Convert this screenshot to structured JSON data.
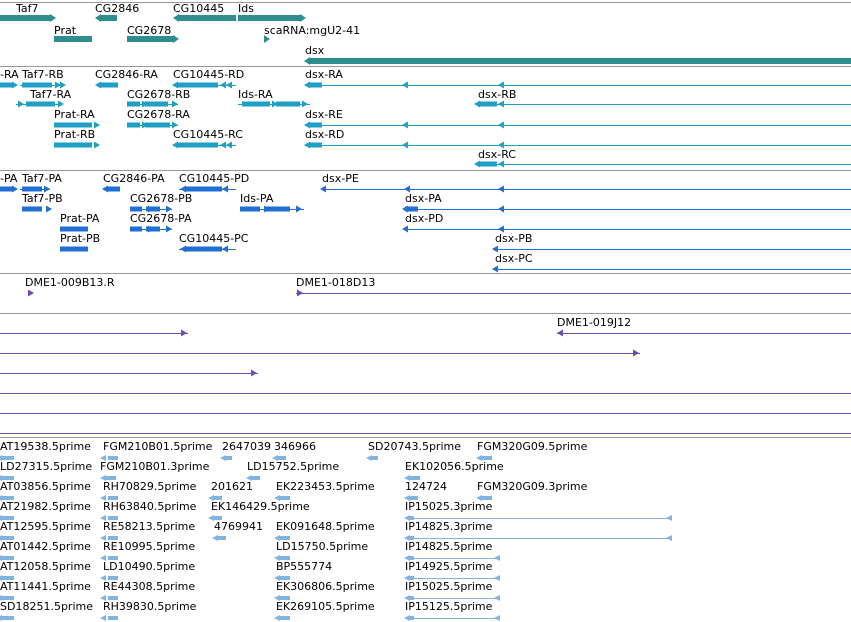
{
  "colors": {
    "gene": "#2f8f8f",
    "transcript": "#1ea0c6",
    "cds": "#1f6fd4",
    "clone": "#6a4fb0",
    "est": "#7fb5e0",
    "separator": "#999999"
  },
  "tracks": {
    "genes": {
      "items": [
        {
          "label": "Taf7",
          "strand": "+"
        },
        {
          "label": "Prat",
          "strand": "+"
        },
        {
          "label": "CG2846",
          "strand": "-"
        },
        {
          "label": "CG2678",
          "strand": "+"
        },
        {
          "label": "CG10445",
          "strand": "-"
        },
        {
          "label": "Ids",
          "strand": "+"
        },
        {
          "label": "scaRNA:mgU2-41",
          "strand": "+"
        },
        {
          "label": "dsx",
          "strand": "-"
        }
      ]
    },
    "transcripts": {
      "items": [
        {
          "label": "-RA"
        },
        {
          "label": "Taf7-RB"
        },
        {
          "label": "CG2846-RA"
        },
        {
          "label": "CG10445-RD"
        },
        {
          "label": "dsx-RA"
        },
        {
          "label": "Taf7-RA"
        },
        {
          "label": "CG2678-RB"
        },
        {
          "label": "Ids-RA"
        },
        {
          "label": "dsx-RB"
        },
        {
          "label": "Prat-RA"
        },
        {
          "label": "CG2678-RA"
        },
        {
          "label": "dsx-RE"
        },
        {
          "label": "Prat-RB"
        },
        {
          "label": "CG10445-RC"
        },
        {
          "label": "dsx-RD"
        },
        {
          "label": "dsx-RC"
        }
      ]
    },
    "proteins": {
      "items": [
        {
          "label": "-PA"
        },
        {
          "label": "Taf7-PA"
        },
        {
          "label": "CG2846-PA"
        },
        {
          "label": "CG10445-PD"
        },
        {
          "label": "dsx-PE"
        },
        {
          "label": "Taf7-PB"
        },
        {
          "label": "CG2678-PB"
        },
        {
          "label": "Ids-PA"
        },
        {
          "label": "dsx-PA"
        },
        {
          "label": "Prat-PA"
        },
        {
          "label": "CG2678-PA"
        },
        {
          "label": "dsx-PD"
        },
        {
          "label": "Prat-PB"
        },
        {
          "label": "CG10445-PC"
        },
        {
          "label": "dsx-PB"
        },
        {
          "label": "dsx-PC"
        }
      ]
    },
    "clones": {
      "items": [
        {
          "label": "DME1-009B13.R"
        },
        {
          "label": "DME1-018D13"
        },
        {
          "label": "DME1-019J12"
        }
      ]
    },
    "ests": {
      "items": [
        {
          "label": "AT19538.5prime"
        },
        {
          "label": "FGM210B01.5prime"
        },
        {
          "label": "2647039"
        },
        {
          "label": "346966"
        },
        {
          "label": "SD20743.5prime"
        },
        {
          "label": "FGM320G09.5prime"
        },
        {
          "label": "LD27315.5prime"
        },
        {
          "label": "FGM210B01.3prime"
        },
        {
          "label": "LD15752.5prime"
        },
        {
          "label": "EK102056.5prime"
        },
        {
          "label": "AT03856.5prime"
        },
        {
          "label": "RH70829.5prime"
        },
        {
          "label": "201621"
        },
        {
          "label": "EK223453.5prime"
        },
        {
          "label": "124724"
        },
        {
          "label": "FGM320G09.3prime"
        },
        {
          "label": "AT21982.5prime"
        },
        {
          "label": "RH63840.5prime"
        },
        {
          "label": "EK146429.5prime"
        },
        {
          "label": "IP15025.3prime"
        },
        {
          "label": "AT12595.5prime"
        },
        {
          "label": "RE58213.5prime"
        },
        {
          "label": "4769941"
        },
        {
          "label": "EK091648.5prime"
        },
        {
          "label": "IP14825.3prime"
        },
        {
          "label": "AT01442.5prime"
        },
        {
          "label": "RE10995.5prime"
        },
        {
          "label": "LD15750.5prime"
        },
        {
          "label": "IP14825.5prime"
        },
        {
          "label": "AT12058.5prime"
        },
        {
          "label": "LD10490.5prime"
        },
        {
          "label": "BP555774"
        },
        {
          "label": "IP14925.5prime"
        },
        {
          "label": "AT11441.5prime"
        },
        {
          "label": "RE44308.5prime"
        },
        {
          "label": "EK306806.5prime"
        },
        {
          "label": "IP15025.5prime"
        },
        {
          "label": "SD18251.5prime"
        },
        {
          "label": "RH39830.5prime"
        },
        {
          "label": "EK269105.5prime"
        },
        {
          "label": "IP15125.5prime"
        }
      ]
    }
  }
}
